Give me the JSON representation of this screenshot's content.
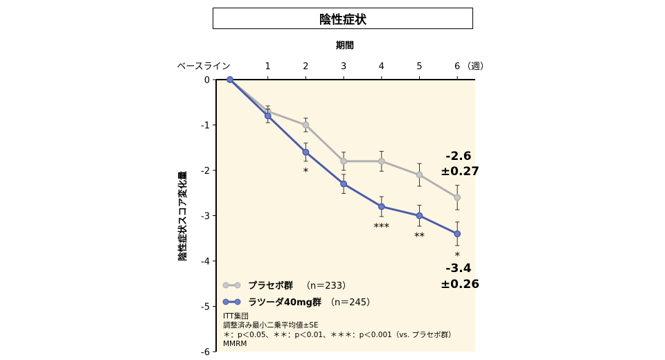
{
  "chart_data": {
    "type": "line",
    "title": "陰性症状",
    "xlabel": "期間",
    "ylabel": "陰性症状スコア変化量",
    "x": [
      0,
      1,
      2,
      3,
      4,
      5,
      6
    ],
    "x_tick_labels": [
      "ベースライン",
      "1",
      "2",
      "3",
      "4",
      "5",
      "6"
    ],
    "x_unit_label": "（週）",
    "ylim": [
      -6,
      0
    ],
    "y_ticks": [
      "0",
      "-1",
      "-2",
      "-3",
      "-4",
      "-5",
      "-6"
    ],
    "series": [
      {
        "name": "プラセボ群",
        "n_label": "（n＝233）",
        "color": "#b0b0b0",
        "values": [
          0,
          -0.7,
          -1.0,
          -1.8,
          -1.8,
          -2.1,
          -2.6
        ],
        "se": [
          0,
          0.12,
          0.15,
          0.2,
          0.22,
          0.25,
          0.27
        ]
      },
      {
        "name": "ラツーダ40mg群",
        "n_label": "（n＝245）",
        "color": "#4a5ba8",
        "values": [
          0,
          -0.8,
          -1.6,
          -2.3,
          -2.8,
          -3.0,
          -3.4
        ],
        "se": [
          0,
          0.15,
          0.2,
          0.21,
          0.22,
          0.23,
          0.26
        ]
      }
    ],
    "significance": [
      {
        "x": 2,
        "label": "*"
      },
      {
        "x": 4,
        "label": "***"
      },
      {
        "x": 5,
        "label": "**"
      },
      {
        "x": 6,
        "label": "*"
      }
    ],
    "endpoint_labels": {
      "placebo_value": "-2.6",
      "placebo_se": "±0.27",
      "drug_value": "-3.4",
      "drug_se": "±0.26"
    },
    "notes": [
      "ITT集団",
      "調整済み最小二乗平均値±SE",
      "＊：p＜0.05、＊＊：p＜0.01、＊＊＊：p＜0.001（vs. プラセボ群）",
      "MMRM"
    ],
    "background_color": "#fdf6e3"
  }
}
